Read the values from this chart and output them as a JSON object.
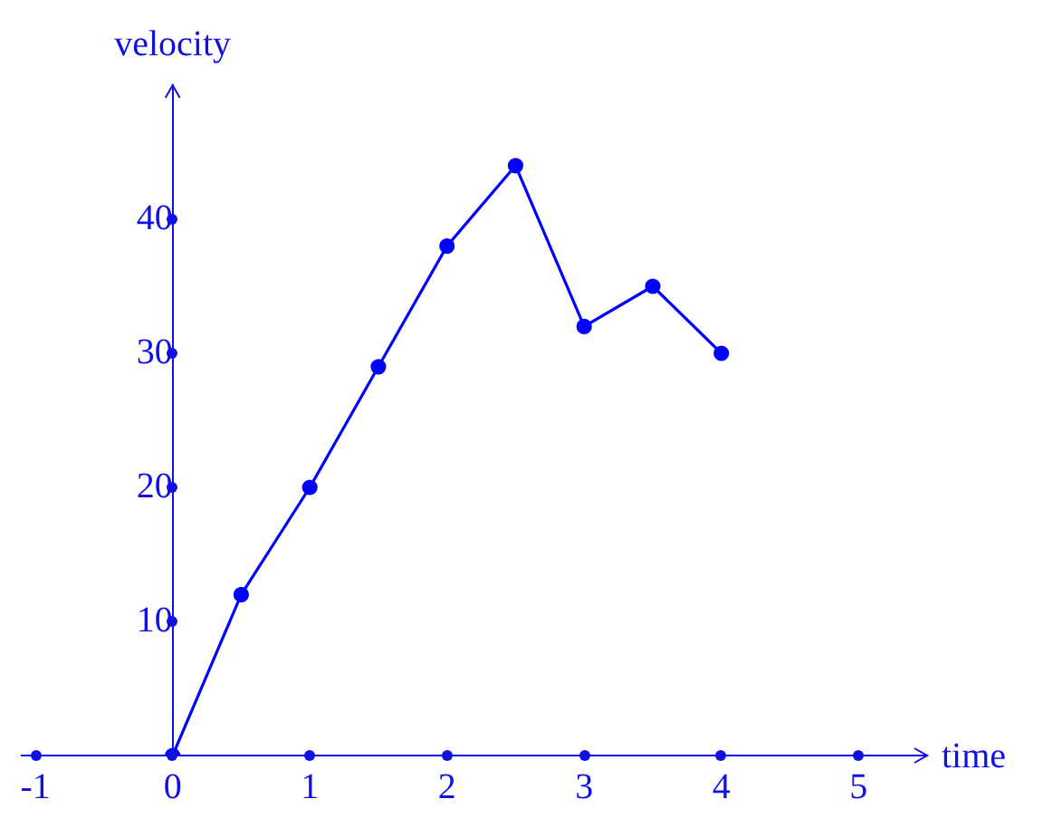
{
  "chart_data": {
    "type": "line",
    "xlabel": "time",
    "ylabel": "velocity",
    "x": [
      0,
      0.5,
      1,
      1.5,
      2,
      2.5,
      3,
      3.5,
      4
    ],
    "series": [
      {
        "color": "#0000ff",
        "values": [
          0,
          12,
          20,
          29,
          38,
          44,
          32,
          35,
          30
        ]
      }
    ],
    "xlim": [
      -1.1,
      5.5
    ],
    "ylim": [
      0,
      50
    ],
    "xticks": [
      -1,
      0,
      1,
      2,
      3,
      4,
      5
    ],
    "yticks": [
      10,
      20,
      30,
      40
    ],
    "grid": false,
    "legend": false,
    "marker": "circle",
    "line_style": "solid"
  }
}
